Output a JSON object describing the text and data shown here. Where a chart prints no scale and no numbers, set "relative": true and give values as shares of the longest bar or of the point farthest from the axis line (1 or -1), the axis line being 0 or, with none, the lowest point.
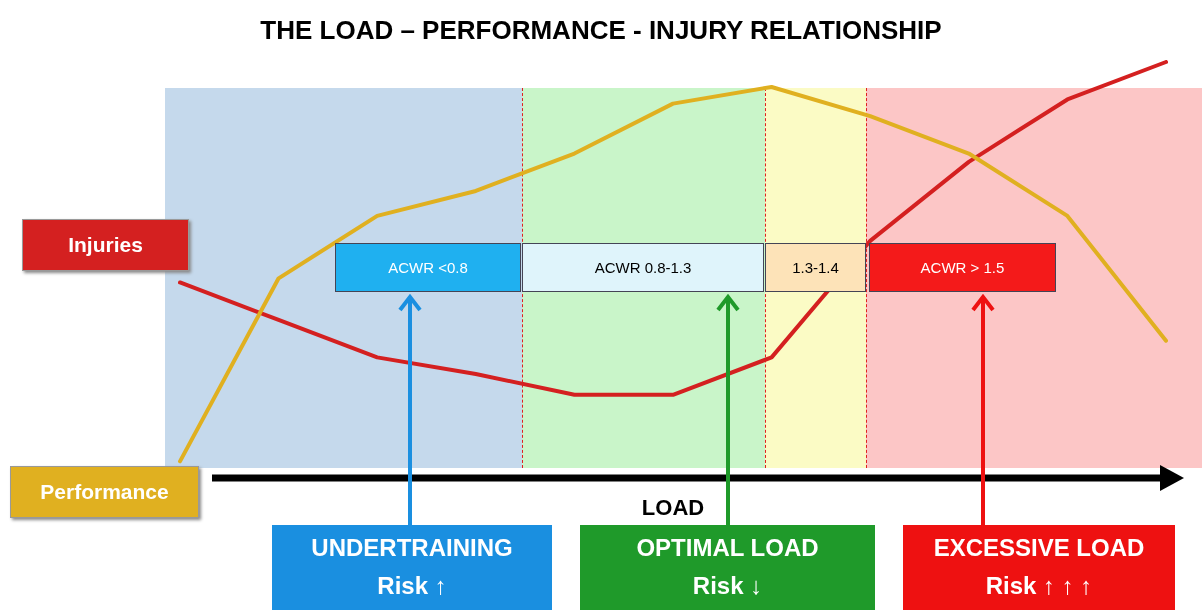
{
  "chart_data": {
    "type": "line",
    "title": "THE LOAD – PERFORMANCE - INJURY RELATIONSHIP",
    "xlabel": "LOAD",
    "relative": true,
    "marker": "none",
    "line_style": "solid",
    "categories": [
      null,
      null,
      null,
      null,
      null,
      null,
      null,
      null,
      null,
      null,
      null
    ],
    "series": [
      {
        "name": "Injuries",
        "color": "#d42020",
        "values": [
          0.47,
          0.38,
          0.29,
          0.25,
          0.2,
          0.2,
          0.29,
          0.57,
          0.76,
          0.91,
          1
        ]
      },
      {
        "name": "Performance",
        "color": "#e0b020",
        "values": [
          0.04,
          0.48,
          0.63,
          0.69,
          0.78,
          0.9,
          0.94,
          0.87,
          0.78,
          0.63,
          0.33
        ]
      }
    ],
    "annotations": [
      "ACWR <0.8",
      "ACWR 0.8-1.3",
      "1.3-1.4",
      "ACWR > 1.5",
      "UNDERTRAINING\nRisk ↑",
      "OPTIMAL LOAD\nRisk ↓",
      "EXCESSIVE LOAD\nRisk ↑ ↑ ↑"
    ]
  }
}
